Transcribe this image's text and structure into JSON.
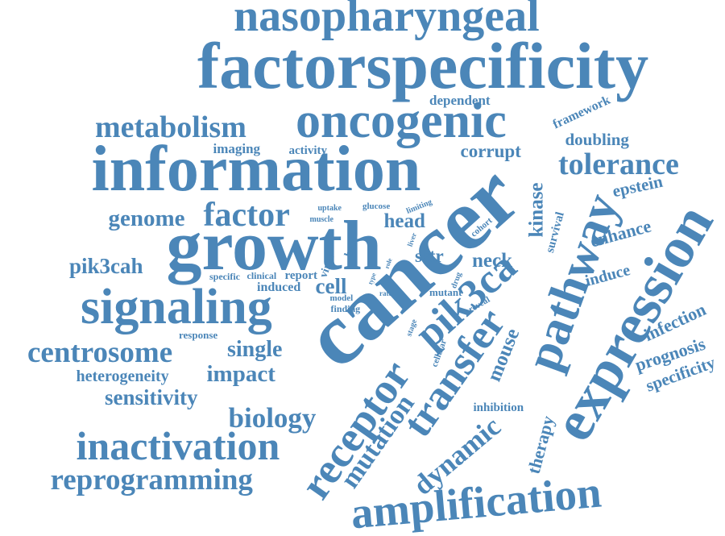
{
  "theme": {
    "word_color": "#4b86b8",
    "background": "#ffffff"
  },
  "words": [
    "nasopharyngeal",
    "factorspecificity",
    "oncogenic",
    "metabolism",
    "information",
    "dependent",
    "framework",
    "doubling",
    "imaging",
    "activity",
    "corrupt",
    "tolerance",
    "epstein",
    "genome",
    "factor",
    "uptake",
    "glucose",
    "limiting",
    "muscle",
    "head",
    "cohort",
    "kinase",
    "cancer",
    "growth",
    "enhance",
    "survival",
    "pathway",
    "expression",
    "pik3cah",
    "barr",
    "virus",
    "liver",
    "sstr",
    "induce",
    "neck",
    "specific",
    "clinical",
    "report",
    "induced",
    "cell",
    "signaling",
    "pik3ca",
    "model",
    "type",
    "role",
    "rate",
    "drug",
    "mutant",
    "reveal",
    "finding",
    "infection",
    "response",
    "stage",
    "cellular",
    "centrosome",
    "single",
    "prognosis",
    "heterogeneity",
    "impact",
    "specificity",
    "mouse",
    "transfer",
    "sensitivity",
    "biology",
    "inhibition",
    "receptor",
    "mutation",
    "dynamic",
    "inactivation",
    "therapy",
    "reprogramming",
    "amplification"
  ]
}
